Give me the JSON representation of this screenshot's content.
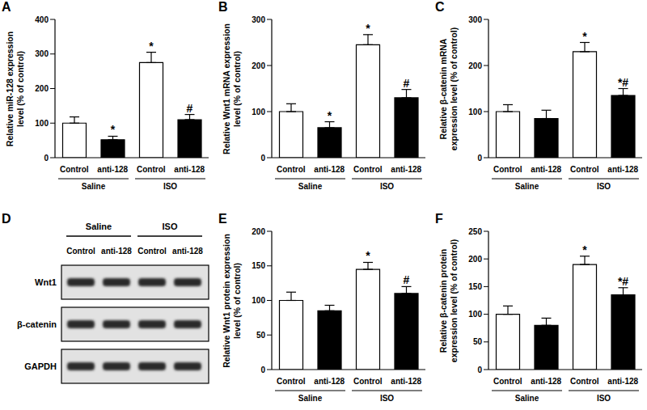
{
  "chart_data": [
    {
      "type": "bar",
      "panel": "A",
      "ylabel": [
        "Relative miR-128 expression",
        "level (% of control)"
      ],
      "categories": [
        "Control",
        "anti-128",
        "Control",
        "anti-128"
      ],
      "groups": [
        "Saline",
        "ISO"
      ],
      "values": [
        100,
        52,
        275,
        110
      ],
      "errors": [
        18,
        10,
        30,
        15
      ],
      "annotations": [
        null,
        "*",
        "*",
        "#"
      ],
      "colors": [
        "#ffffff",
        "#000000",
        "#ffffff",
        "#000000"
      ],
      "ylim": [
        0,
        400
      ],
      "yticks": [
        0,
        100,
        200,
        300,
        400
      ]
    },
    {
      "type": "bar",
      "panel": "B",
      "ylabel": [
        "Relative Wnt1 mRNA expression",
        "level (% of control)"
      ],
      "categories": [
        "Control",
        "anti-128",
        "Control",
        "anti-128"
      ],
      "groups": [
        "Saline",
        "ISO"
      ],
      "values": [
        100,
        65,
        245,
        130
      ],
      "errors": [
        17,
        13,
        22,
        18
      ],
      "annotations": [
        null,
        "*",
        "*",
        "#"
      ],
      "colors": [
        "#ffffff",
        "#000000",
        "#ffffff",
        "#000000"
      ],
      "ylim": [
        0,
        300
      ],
      "yticks": [
        0,
        100,
        200,
        300
      ]
    },
    {
      "type": "bar",
      "panel": "C",
      "ylabel": [
        "Relative β-catenin mRNA",
        "expression level (% of control)"
      ],
      "categories": [
        "Control",
        "anti-128",
        "Control",
        "anti-128"
      ],
      "groups": [
        "Saline",
        "ISO"
      ],
      "values": [
        100,
        85,
        230,
        135
      ],
      "errors": [
        15,
        18,
        20,
        15
      ],
      "annotations": [
        null,
        null,
        "*",
        "*#"
      ],
      "colors": [
        "#ffffff",
        "#000000",
        "#ffffff",
        "#000000"
      ],
      "ylim": [
        0,
        300
      ],
      "yticks": [
        0,
        100,
        200,
        300
      ]
    },
    {
      "type": "blot",
      "panel": "D",
      "categories": [
        "Control",
        "anti-128",
        "Control",
        "anti-128"
      ],
      "groups": [
        "Saline",
        "ISO"
      ],
      "rows": [
        "Wnt1",
        "β-catenin",
        "GAPDH"
      ]
    },
    {
      "type": "bar",
      "panel": "E",
      "ylabel": [
        "Relative Wnt1 protein expression",
        "level (% of control)"
      ],
      "categories": [
        "Control",
        "anti-128",
        "Control",
        "anti-128"
      ],
      "groups": [
        "Saline",
        "ISO"
      ],
      "values": [
        100,
        85,
        145,
        110
      ],
      "errors": [
        12,
        8,
        10,
        10
      ],
      "annotations": [
        null,
        null,
        "*",
        "#"
      ],
      "colors": [
        "#ffffff",
        "#000000",
        "#ffffff",
        "#000000"
      ],
      "ylim": [
        0,
        200
      ],
      "yticks": [
        0,
        50,
        100,
        150,
        200
      ]
    },
    {
      "type": "bar",
      "panel": "F",
      "ylabel": [
        "Relative β-catenin protein",
        "expression level (% of control)"
      ],
      "categories": [
        "Control",
        "anti-128",
        "Control",
        "anti-128"
      ],
      "groups": [
        "Saline",
        "ISO"
      ],
      "values": [
        100,
        80,
        190,
        135
      ],
      "errors": [
        15,
        13,
        15,
        13
      ],
      "annotations": [
        null,
        null,
        "*",
        "*#"
      ],
      "colors": [
        "#ffffff",
        "#000000",
        "#ffffff",
        "#000000"
      ],
      "ylim": [
        0,
        250
      ],
      "yticks": [
        0,
        50,
        100,
        150,
        200,
        250
      ]
    }
  ]
}
